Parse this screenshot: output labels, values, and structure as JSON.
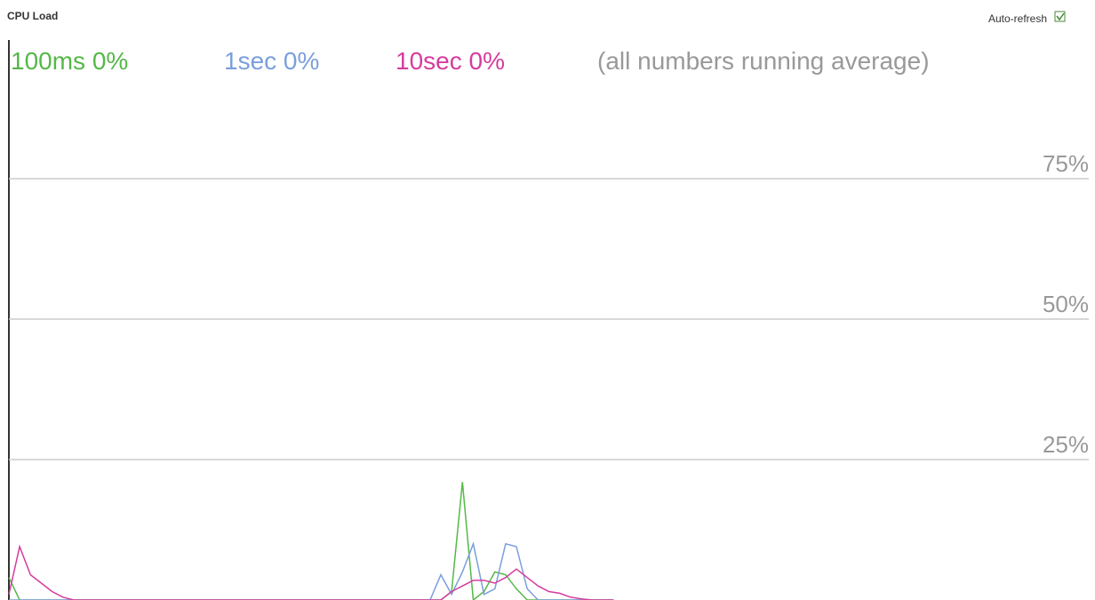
{
  "header": {
    "title": "CPU Load",
    "auto_refresh": "Auto-refresh",
    "checked": true
  },
  "chart_data": {
    "type": "line",
    "annotation": "(all numbers running average)",
    "x": [
      0,
      1,
      2,
      3,
      4,
      5,
      6,
      7,
      8,
      9,
      10,
      11,
      12,
      13,
      14,
      15,
      16,
      17,
      18,
      19,
      20,
      21,
      22,
      23,
      24,
      25,
      26,
      27,
      28,
      29,
      30,
      31,
      32,
      33,
      34,
      35,
      36,
      37,
      38,
      39,
      40,
      41,
      42,
      43,
      44,
      45,
      46,
      47,
      48,
      49,
      50,
      51,
      52,
      53,
      54,
      55,
      56
    ],
    "xlim": [
      0,
      100
    ],
    "ylim": [
      0,
      100
    ],
    "yticks": [
      {
        "value": 25,
        "label": "25%"
      },
      {
        "value": 50,
        "label": "50%"
      },
      {
        "value": 75,
        "label": "75%"
      }
    ],
    "grid": true,
    "series": [
      {
        "name": "100ms 0%",
        "color": "#55b848",
        "values": [
          4,
          0,
          0,
          0,
          0,
          0,
          0,
          0,
          0,
          0,
          0,
          0,
          0,
          0,
          0,
          0,
          0,
          0,
          0,
          0,
          0,
          0,
          0,
          0,
          0,
          0,
          0,
          0,
          0,
          0,
          0,
          0,
          0,
          0,
          0,
          0,
          0,
          0,
          0,
          0,
          0,
          1.5,
          21,
          0,
          1.5,
          5,
          4.5,
          2,
          0,
          0,
          0,
          0,
          0,
          0,
          0,
          0,
          0
        ]
      },
      {
        "name": "1sec 0%",
        "color": "#7b9fdc",
        "values": [
          0,
          0,
          0,
          0,
          0,
          0,
          0,
          0,
          0,
          0,
          0,
          0,
          0,
          0,
          0,
          0,
          0,
          0,
          0,
          0,
          0,
          0,
          0,
          0,
          0,
          0,
          0,
          0,
          0,
          0,
          0,
          0,
          0,
          0,
          0,
          0,
          0,
          0,
          0,
          0,
          4.5,
          1,
          5,
          10,
          1,
          2,
          10,
          9.5,
          2,
          0,
          0,
          0,
          0,
          0,
          0,
          0,
          0
        ]
      },
      {
        "name": "10sec 0%",
        "color": "#d63c9e",
        "values": [
          1,
          9.5,
          4.5,
          3,
          1.5,
          0.5,
          0,
          0,
          0,
          0,
          0,
          0,
          0,
          0,
          0,
          0,
          0,
          0,
          0,
          0,
          0,
          0,
          0,
          0,
          0,
          0,
          0,
          0,
          0,
          0,
          0,
          0,
          0,
          0,
          0,
          0,
          0,
          0,
          0,
          0,
          0,
          1.5,
          2.5,
          3.5,
          3.5,
          3,
          4,
          5.5,
          4,
          2.5,
          1.5,
          1.2,
          0.5,
          0.2,
          0,
          0,
          0
        ]
      }
    ]
  }
}
